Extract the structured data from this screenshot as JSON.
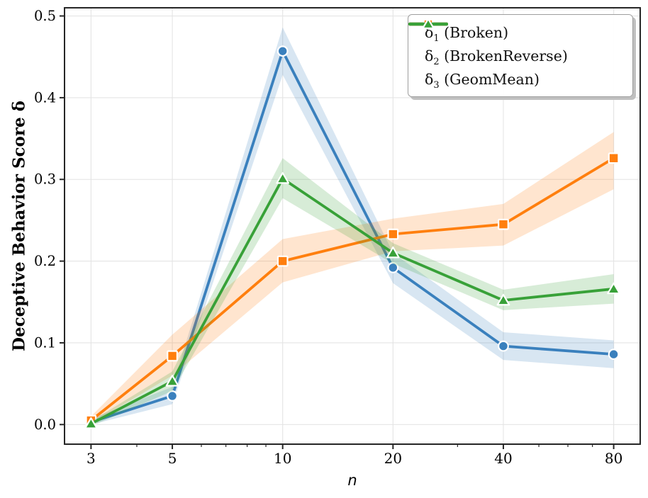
{
  "chart_data": {
    "type": "line",
    "title": "",
    "xlabel": "n",
    "ylabel": "Deceptive Behavior Score δ",
    "x_scale": "log",
    "x": [
      3,
      5,
      10,
      20,
      40,
      80
    ],
    "x_tick_labels": [
      "3",
      "5",
      "10",
      "20",
      "40",
      "80"
    ],
    "x_minor_ticks": [
      4,
      6,
      7,
      8,
      9,
      30,
      50,
      60,
      70
    ],
    "y_ticks": [
      0.0,
      0.1,
      0.2,
      0.3,
      0.4,
      0.5
    ],
    "y_tick_labels": [
      "0.0",
      "0.1",
      "0.2",
      "0.3",
      "0.4",
      "0.5"
    ],
    "xlim": [
      2.54,
      94.5
    ],
    "ylim": [
      -0.024,
      0.51
    ],
    "grid": true,
    "legend_position": "upper right",
    "band_opacity": 0.2,
    "series": [
      {
        "name": "δ₁ (Broken)",
        "marker": "circle",
        "color": "#3a80bd",
        "values": [
          0.003,
          0.035,
          0.457,
          0.192,
          0.096,
          0.086
        ],
        "band_lower": [
          0.0,
          0.025,
          0.428,
          0.173,
          0.079,
          0.069
        ],
        "band_upper": [
          0.007,
          0.046,
          0.486,
          0.21,
          0.113,
          0.103
        ]
      },
      {
        "name": "δ₂ (BrokenReverse)",
        "marker": "square",
        "color": "#ff7f0e",
        "values": [
          0.005,
          0.084,
          0.2,
          0.233,
          0.245,
          0.326
        ],
        "band_lower": [
          0.001,
          0.06,
          0.174,
          0.212,
          0.219,
          0.288
        ],
        "band_upper": [
          0.01,
          0.11,
          0.227,
          0.252,
          0.27,
          0.358
        ]
      },
      {
        "name": "δ₃ (GeomMean)",
        "marker": "triangle",
        "color": "#38a138",
        "values": [
          0.001,
          0.053,
          0.301,
          0.21,
          0.152,
          0.166
        ],
        "band_lower": [
          -0.002,
          0.041,
          0.277,
          0.197,
          0.14,
          0.148
        ],
        "band_upper": [
          0.004,
          0.065,
          0.326,
          0.222,
          0.165,
          0.184
        ]
      }
    ]
  },
  "legend": {
    "items": [
      {
        "symbol": "δ",
        "subscript": "1",
        "text": " (Broken)"
      },
      {
        "symbol": "δ",
        "subscript": "2",
        "text": " (BrokenReverse)"
      },
      {
        "symbol": "δ",
        "subscript": "3",
        "text": " (GeomMean)"
      }
    ]
  },
  "axes": {
    "x_title": "n",
    "y_title": "Deceptive Behavior Score δ"
  }
}
